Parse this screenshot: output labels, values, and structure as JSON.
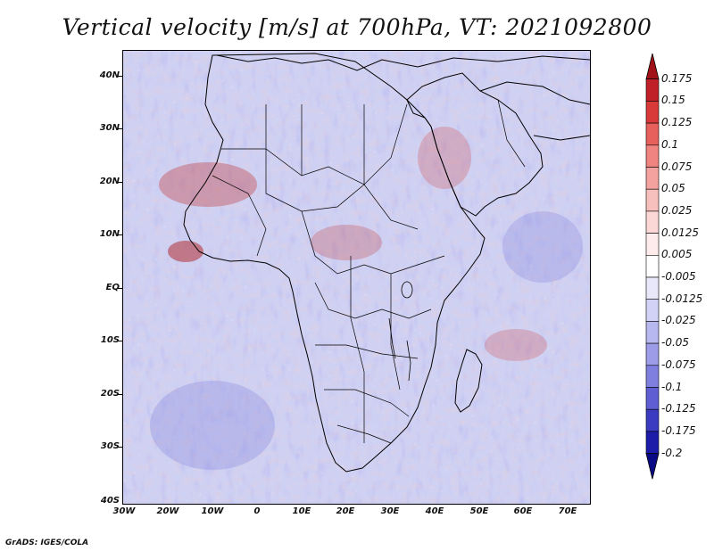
{
  "title": "Vertical velocity [m/s] at 700hPa, VT: 2021092800",
  "footer": "GrADS: IGES/COLA",
  "map": {
    "lat_labels": [
      "40N",
      "30N",
      "20N",
      "10N",
      "EQ",
      "10S",
      "20S",
      "30S",
      "40S"
    ],
    "lon_labels": [
      "30W",
      "20W",
      "10W",
      "0",
      "10E",
      "20E",
      "30E",
      "40E",
      "50E",
      "60E",
      "70E"
    ]
  },
  "colorbar": {
    "labels": [
      "0.175",
      "0.15",
      "0.125",
      "0.1",
      "0.075",
      "0.05",
      "0.025",
      "0.0125",
      "0.005",
      "-0.005",
      "-0.0125",
      "-0.025",
      "-0.05",
      "-0.075",
      "-0.1",
      "-0.125",
      "-0.175",
      "-0.2"
    ],
    "colors": [
      "#a01218",
      "#c02128",
      "#d83a3a",
      "#e8605c",
      "#ef8480",
      "#f4a29f",
      "#f8c0bd",
      "#fbd8d6",
      "#fdeceb",
      "#ffffff",
      "#e8e8fa",
      "#d2d2f6",
      "#b8b8f0",
      "#9c9ce8",
      "#7f7fdf",
      "#5f5fd3",
      "#3b3bc2",
      "#1c1ca8",
      "#0a0a84"
    ]
  }
}
